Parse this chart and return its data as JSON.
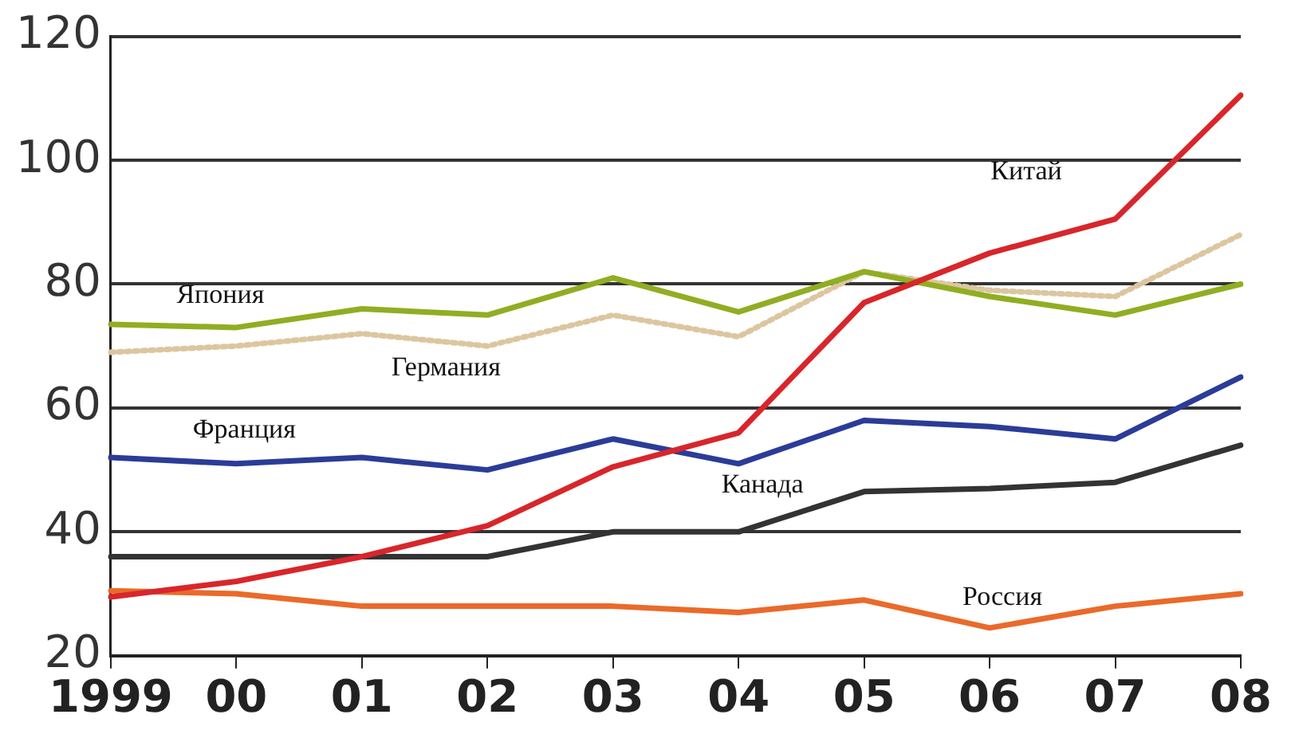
{
  "chart_data": {
    "type": "line",
    "categories": [
      "1999",
      "00",
      "01",
      "02",
      "03",
      "04",
      "05",
      "06",
      "07",
      "08"
    ],
    "series": [
      {
        "name": "Китай",
        "color": "#d8262b",
        "values": [
          29.5,
          32,
          36,
          41,
          50.5,
          56,
          77,
          85,
          90.5,
          110.5
        ]
      },
      {
        "name": "Япония",
        "color": "#8fae22",
        "values": [
          73.5,
          73,
          76,
          75,
          81,
          75.5,
          82,
          78,
          75,
          80
        ]
      },
      {
        "name": "Германия",
        "color": "#dcc6a0",
        "line_style": "dotted",
        "values": [
          69,
          70,
          72,
          70,
          75,
          71.5,
          82,
          79,
          78,
          88
        ]
      },
      {
        "name": "Франция",
        "color": "#2b3c98",
        "values": [
          52,
          51,
          52,
          50,
          55,
          51,
          58,
          57,
          55,
          65
        ]
      },
      {
        "name": "Канада",
        "color": "#333333",
        "values": [
          36,
          36,
          36,
          36,
          40,
          40,
          46.5,
          47,
          48,
          54
        ]
      },
      {
        "name": "Россия",
        "color": "#ea6a2a",
        "values": [
          30.5,
          30,
          28,
          28,
          28,
          27,
          29,
          24.5,
          28,
          30
        ]
      }
    ],
    "ylim": [
      20,
      120
    ],
    "yticks": [
      20,
      40,
      60,
      80,
      100,
      120
    ],
    "grid": "y",
    "legend": false,
    "marker": "none",
    "line_style": "solid"
  }
}
